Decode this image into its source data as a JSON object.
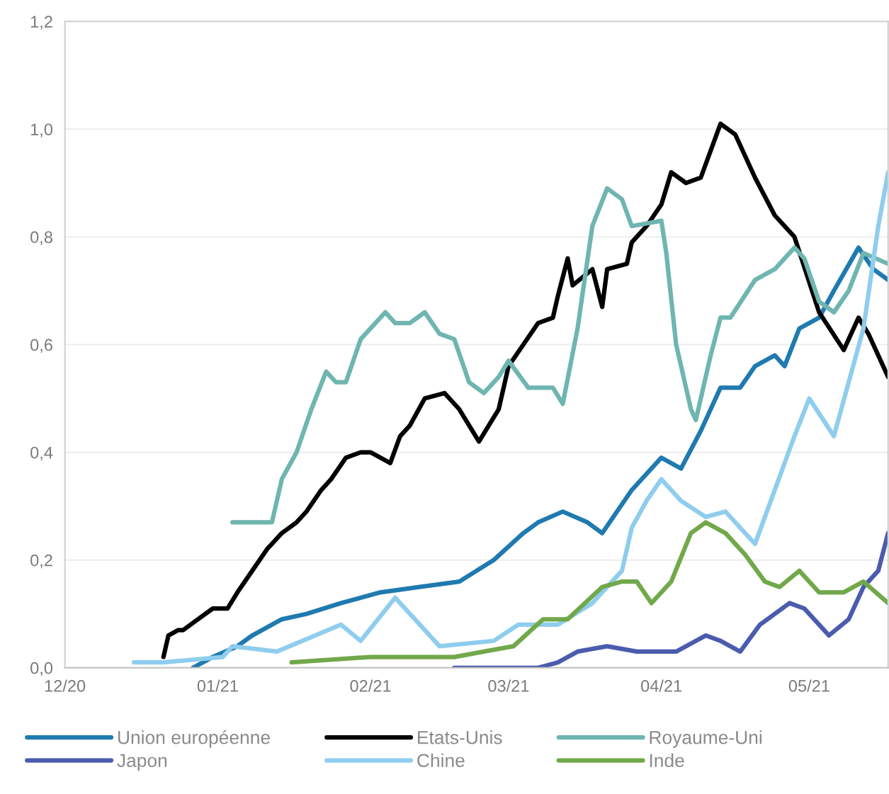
{
  "chart_data": {
    "type": "line",
    "xlim": [
      "2020-12-01",
      "2021-05-17"
    ],
    "xticks": [
      {
        "value": "2020-12-01",
        "label": "12/20"
      },
      {
        "value": "2021-01-01",
        "label": "01/21"
      },
      {
        "value": "2021-02-01",
        "label": "02/21"
      },
      {
        "value": "2021-03-01",
        "label": "03/21"
      },
      {
        "value": "2021-04-01",
        "label": "04/21"
      },
      {
        "value": "2021-05-01",
        "label": "05/21"
      }
    ],
    "ylim": [
      0,
      1.2
    ],
    "yticks": [
      {
        "value": 0,
        "label": "0,0"
      },
      {
        "value": 0.2,
        "label": "0,2"
      },
      {
        "value": 0.4,
        "label": "0,4"
      },
      {
        "value": 0.6,
        "label": "0,6"
      },
      {
        "value": 0.8,
        "label": "0,8"
      },
      {
        "value": 1.0,
        "label": "1,0"
      },
      {
        "value": 1.2,
        "label": "1,2"
      }
    ],
    "grid": "y",
    "legend": "bottom",
    "marker": "none",
    "line_style": "solid",
    "series": [
      {
        "name": "Union européenne",
        "color": "#1f7ab0",
        "x": [
          "2020-12-27",
          "2020-12-31",
          "2021-01-05",
          "2021-01-08",
          "2021-01-14",
          "2021-01-19",
          "2021-01-26",
          "2021-02-03",
          "2021-02-11",
          "2021-02-19",
          "2021-02-26",
          "2021-03-04",
          "2021-03-07",
          "2021-03-12",
          "2021-03-17",
          "2021-03-20",
          "2021-03-26",
          "2021-04-01",
          "2021-04-05",
          "2021-04-09",
          "2021-04-13",
          "2021-04-17",
          "2021-04-20",
          "2021-04-24",
          "2021-04-26",
          "2021-04-29",
          "2021-05-03",
          "2021-05-06",
          "2021-05-11",
          "2021-05-14",
          "2021-05-17"
        ],
        "values": [
          0.0,
          0.02,
          0.04,
          0.06,
          0.09,
          0.1,
          0.12,
          0.14,
          0.15,
          0.16,
          0.2,
          0.25,
          0.27,
          0.29,
          0.27,
          0.25,
          0.33,
          0.39,
          0.37,
          0.44,
          0.52,
          0.52,
          0.56,
          0.58,
          0.56,
          0.63,
          0.65,
          0.7,
          0.78,
          0.74,
          0.72
        ]
      },
      {
        "name": "Etats-Unis",
        "color": "#000000",
        "x": [
          "2020-12-21",
          "2020-12-22",
          "2020-12-24",
          "2020-12-25",
          "2020-12-28",
          "2020-12-31",
          "2021-01-03",
          "2021-01-05",
          "2021-01-08",
          "2021-01-11",
          "2021-01-14",
          "2021-01-17",
          "2021-01-19",
          "2021-01-22",
          "2021-01-24",
          "2021-01-27",
          "2021-01-30",
          "2021-02-01",
          "2021-02-05",
          "2021-02-07",
          "2021-02-09",
          "2021-02-12",
          "2021-02-16",
          "2021-02-19",
          "2021-02-23",
          "2021-02-27",
          "2021-03-01",
          "2021-03-04",
          "2021-03-07",
          "2021-03-10",
          "2021-03-11",
          "2021-03-13",
          "2021-03-14",
          "2021-03-18",
          "2021-03-20",
          "2021-03-21",
          "2021-03-25",
          "2021-03-26",
          "2021-03-29",
          "2021-04-01",
          "2021-04-03",
          "2021-04-06",
          "2021-04-09",
          "2021-04-13",
          "2021-04-16",
          "2021-04-20",
          "2021-04-24",
          "2021-04-28",
          "2021-05-03",
          "2021-05-08",
          "2021-05-11",
          "2021-05-13",
          "2021-05-17"
        ],
        "values": [
          0.02,
          0.06,
          0.07,
          0.07,
          0.09,
          0.11,
          0.11,
          0.14,
          0.18,
          0.22,
          0.25,
          0.27,
          0.29,
          0.33,
          0.35,
          0.39,
          0.4,
          0.4,
          0.38,
          0.43,
          0.45,
          0.5,
          0.51,
          0.48,
          0.42,
          0.48,
          0.56,
          0.6,
          0.64,
          0.65,
          0.69,
          0.76,
          0.71,
          0.74,
          0.67,
          0.74,
          0.75,
          0.79,
          0.82,
          0.86,
          0.92,
          0.9,
          0.91,
          1.01,
          0.99,
          0.91,
          0.84,
          0.8,
          0.66,
          0.59,
          0.65,
          0.62,
          0.54
        ]
      },
      {
        "name": "Royaume-Uni",
        "color": "#6fb5b0",
        "x": [
          "2021-01-04",
          "2021-01-12",
          "2021-01-14",
          "2021-01-17",
          "2021-01-20",
          "2021-01-23",
          "2021-01-25",
          "2021-01-27",
          "2021-01-30",
          "2021-02-04",
          "2021-02-06",
          "2021-02-09",
          "2021-02-12",
          "2021-02-15",
          "2021-02-18",
          "2021-02-21",
          "2021-02-24",
          "2021-02-27",
          "2021-03-01",
          "2021-03-05",
          "2021-03-10",
          "2021-03-12",
          "2021-03-15",
          "2021-03-18",
          "2021-03-21",
          "2021-03-24",
          "2021-03-26",
          "2021-04-01",
          "2021-04-02",
          "2021-04-04",
          "2021-04-07",
          "2021-04-08",
          "2021-04-11",
          "2021-04-13",
          "2021-04-15",
          "2021-04-20",
          "2021-04-24",
          "2021-04-28",
          "2021-04-30",
          "2021-05-03",
          "2021-05-06",
          "2021-05-09",
          "2021-05-12",
          "2021-05-17"
        ],
        "values": [
          0.27,
          0.27,
          0.35,
          0.4,
          0.48,
          0.55,
          0.53,
          0.53,
          0.61,
          0.66,
          0.64,
          0.64,
          0.66,
          0.62,
          0.61,
          0.53,
          0.51,
          0.54,
          0.57,
          0.52,
          0.52,
          0.49,
          0.63,
          0.82,
          0.89,
          0.87,
          0.82,
          0.83,
          0.77,
          0.6,
          0.48,
          0.46,
          0.58,
          0.65,
          0.65,
          0.72,
          0.74,
          0.78,
          0.76,
          0.68,
          0.66,
          0.7,
          0.77,
          0.75
        ]
      },
      {
        "name": "Japon",
        "color": "#4b5cae",
        "x": [
          "2021-02-18",
          "2021-03-07",
          "2021-03-11",
          "2021-03-15",
          "2021-03-21",
          "2021-03-27",
          "2021-04-04",
          "2021-04-10",
          "2021-04-13",
          "2021-04-17",
          "2021-04-21",
          "2021-04-27",
          "2021-04-30",
          "2021-05-05",
          "2021-05-09",
          "2021-05-12",
          "2021-05-15",
          "2021-05-17"
        ],
        "values": [
          0.0,
          0.0,
          0.01,
          0.03,
          0.04,
          0.03,
          0.03,
          0.06,
          0.05,
          0.03,
          0.08,
          0.12,
          0.11,
          0.06,
          0.09,
          0.15,
          0.18,
          0.25
        ]
      },
      {
        "name": "Chine",
        "color": "#8fcdee",
        "x": [
          "2020-12-15",
          "2020-12-21",
          "2021-01-02",
          "2021-01-04",
          "2021-01-13",
          "2021-01-26",
          "2021-01-30",
          "2021-02-06",
          "2021-02-11",
          "2021-02-15",
          "2021-02-26",
          "2021-03-03",
          "2021-03-11",
          "2021-03-18",
          "2021-03-24",
          "2021-03-26",
          "2021-03-29",
          "2021-04-01",
          "2021-04-05",
          "2021-04-10",
          "2021-04-14",
          "2021-04-20",
          "2021-04-24",
          "2021-04-28",
          "2021-05-01",
          "2021-05-06",
          "2021-05-12",
          "2021-05-15",
          "2021-05-17"
        ],
        "values": [
          0.01,
          0.01,
          0.02,
          0.04,
          0.03,
          0.08,
          0.05,
          0.13,
          0.08,
          0.04,
          0.05,
          0.08,
          0.08,
          0.12,
          0.18,
          0.26,
          0.31,
          0.35,
          0.31,
          0.28,
          0.29,
          0.23,
          0.33,
          0.43,
          0.5,
          0.43,
          0.63,
          0.82,
          0.92
        ]
      },
      {
        "name": "Inde",
        "color": "#71a84a",
        "x": [
          "2021-01-16",
          "2021-02-01",
          "2021-02-18",
          "2021-02-24",
          "2021-03-02",
          "2021-03-08",
          "2021-03-13",
          "2021-03-20",
          "2021-03-24",
          "2021-03-27",
          "2021-03-30",
          "2021-04-03",
          "2021-04-07",
          "2021-04-10",
          "2021-04-14",
          "2021-04-18",
          "2021-04-22",
          "2021-04-25",
          "2021-04-29",
          "2021-05-03",
          "2021-05-08",
          "2021-05-12",
          "2021-05-17"
        ],
        "values": [
          0.01,
          0.02,
          0.02,
          0.03,
          0.04,
          0.09,
          0.09,
          0.15,
          0.16,
          0.16,
          0.12,
          0.16,
          0.25,
          0.27,
          0.25,
          0.21,
          0.16,
          0.15,
          0.18,
          0.14,
          0.14,
          0.16,
          0.12
        ]
      }
    ]
  }
}
